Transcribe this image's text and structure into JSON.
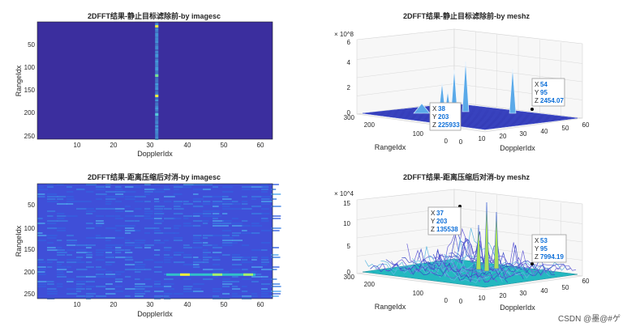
{
  "watermark": "CSDN @墨@#ゲ",
  "chart_data": [
    {
      "type": "heatmap",
      "title": "2DFFT结果-静止目标滤除前-by imagesc",
      "xlabel": "DopplerIdx",
      "ylabel": "RangeIdx",
      "xlim": [
        0.5,
        64.5
      ],
      "ylim": [
        256.5,
        0.5
      ],
      "xticks": [
        "10",
        "20",
        "30",
        "40",
        "50",
        "60"
      ],
      "yticks": [
        "50",
        "100",
        "150",
        "200",
        "250"
      ],
      "background_color": "#3b2e9e",
      "peak_doppler": 33
    },
    {
      "type": "surface",
      "title": "2DFFT结果-静止目标滤除前-by meshz",
      "xlabel": "DopplerIdx",
      "ylabel": "RangeIdx",
      "zexponent": "× 10^8",
      "zlim": [
        0,
        6
      ],
      "zticks": [
        "0",
        "2",
        "4",
        "6"
      ],
      "xticks": [
        "0",
        "10",
        "20",
        "30",
        "40",
        "50",
        "60"
      ],
      "yticks": [
        "0",
        "100",
        "200",
        "300"
      ],
      "datatips": [
        {
          "x": "38",
          "y": "203",
          "z": "225933"
        },
        {
          "x": "54",
          "y": "95",
          "z": "2454.07"
        }
      ]
    },
    {
      "type": "heatmap",
      "title": "2DFFT结果-距离压缩后对消-by imagesc",
      "xlabel": "DopplerIdx",
      "ylabel": "RangeIdx",
      "xlim": [
        0.5,
        64.5
      ],
      "ylim": [
        256.5,
        0.5
      ],
      "xticks": [
        "10",
        "20",
        "30",
        "40",
        "50",
        "60"
      ],
      "yticks": [
        "50",
        "100",
        "150",
        "200",
        "250"
      ],
      "background_color": "#3f4fd8",
      "target_range": 203
    },
    {
      "type": "surface",
      "title": "2DFFT结果-距离压缩后对消-by meshz",
      "xlabel": "DopplerIdx",
      "ylabel": "RangeIdx",
      "zexponent": "× 10^4",
      "zlim": [
        0,
        15
      ],
      "zticks": [
        "0",
        "5",
        "10",
        "15"
      ],
      "xticks": [
        "0",
        "10",
        "20",
        "30",
        "40",
        "50",
        "60"
      ],
      "yticks": [
        "0",
        "100",
        "200",
        "300"
      ],
      "datatips": [
        {
          "x": "37",
          "y": "203",
          "z": "135538"
        },
        {
          "x": "53",
          "y": "95",
          "z": "7994.19"
        }
      ]
    }
  ]
}
